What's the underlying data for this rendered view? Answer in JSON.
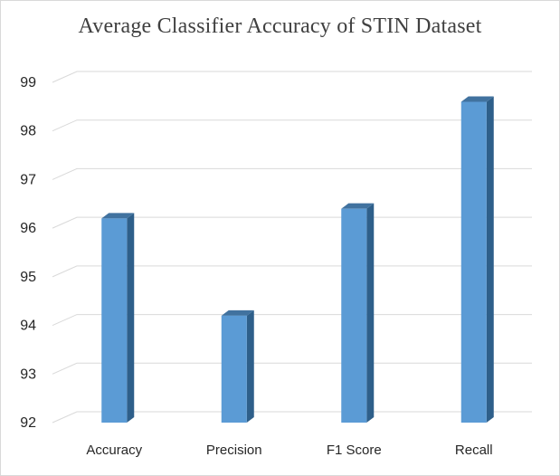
{
  "chart_data": {
    "type": "bar",
    "style": "3d-column",
    "title": "Average Classifier Accuracy of STIN  Dataset",
    "xlabel": "",
    "ylabel": "",
    "categories": [
      "Accuracy",
      "Precision",
      "F1 Score",
      "Recall"
    ],
    "values": [
      96.2,
      94.2,
      96.4,
      98.6
    ],
    "ylim": [
      92,
      99
    ],
    "yticks": [
      92,
      93,
      94,
      95,
      96,
      97,
      98,
      99
    ],
    "grid": true,
    "legend": "none",
    "colors": {
      "bar_front": "#5b9bd5",
      "bar_side": "#2e5f8a",
      "bar_top": "#41729f",
      "gridline": "#d9d9d9",
      "text": "#262626"
    }
  }
}
